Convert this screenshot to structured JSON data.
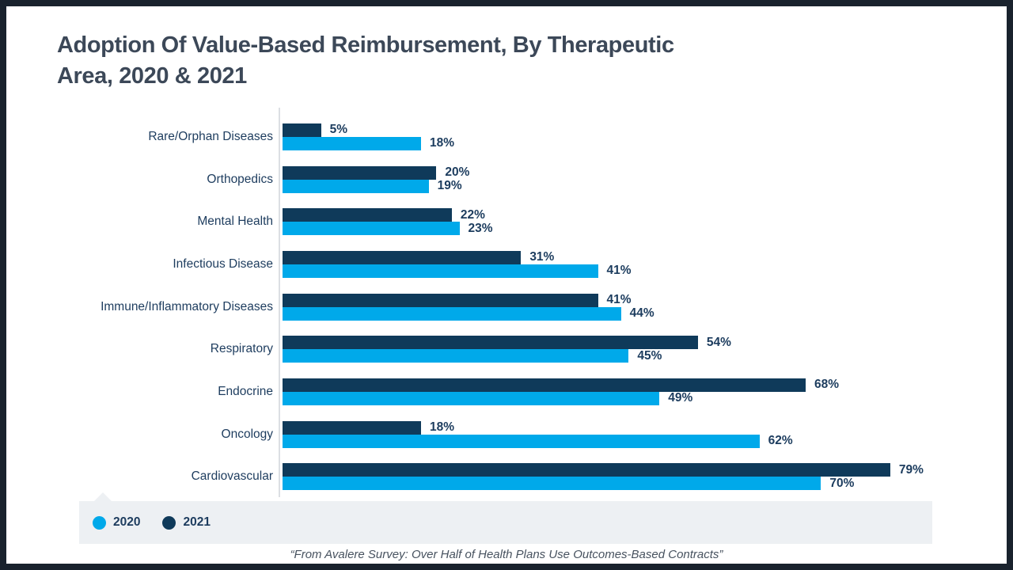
{
  "slide": {
    "title_lines": [
      "Adoption Of Value-Based Reimbursement, By Therapeutic",
      "Area, 2020 & 2021"
    ],
    "footer": "“From Avalere Survey: Over Half of Health Plans Use Outcomes-Based Contracts”"
  },
  "colors": {
    "bar_2020": "#00a9ea",
    "bar_2021": "#0f3a5a",
    "frame": "#19222d",
    "legend_band": "#edf0f3",
    "title_text": "#3c4858",
    "label_text": "#1d3c5e",
    "axis_line": "#dcdfe3"
  },
  "legend": {
    "items": [
      {
        "label": "2020",
        "color": "#00a9ea"
      },
      {
        "label": "2021",
        "color": "#0f3a5a"
      }
    ]
  },
  "chart_data": {
    "type": "bar",
    "orientation": "horizontal",
    "title": "Adoption Of Value-Based Reimbursement, By Therapeutic Area, 2020 & 2021",
    "categories": [
      "Rare/Orphan Diseases",
      "Orthopedics",
      "Mental Health",
      "Infectious Disease",
      "Immune/Inflammatory Diseases",
      "Respiratory",
      "Endocrine",
      "Oncology",
      "Cardiovascular"
    ],
    "series": [
      {
        "name": "2021",
        "color": "#0f3a5a",
        "values": [
          5,
          20,
          22,
          31,
          41,
          54,
          68,
          18,
          79
        ]
      },
      {
        "name": "2020",
        "color": "#00a9ea",
        "values": [
          18,
          19,
          23,
          41,
          44,
          45,
          49,
          62,
          70
        ]
      }
    ],
    "value_suffix": "%",
    "xlabel": "",
    "ylabel": "",
    "xlim": [
      0,
      80
    ],
    "grid": false,
    "legend_position": "bottom",
    "annotation": "“From Avalere Survey: Over Half of Health Plans Use Outcomes-Based Contracts”"
  }
}
